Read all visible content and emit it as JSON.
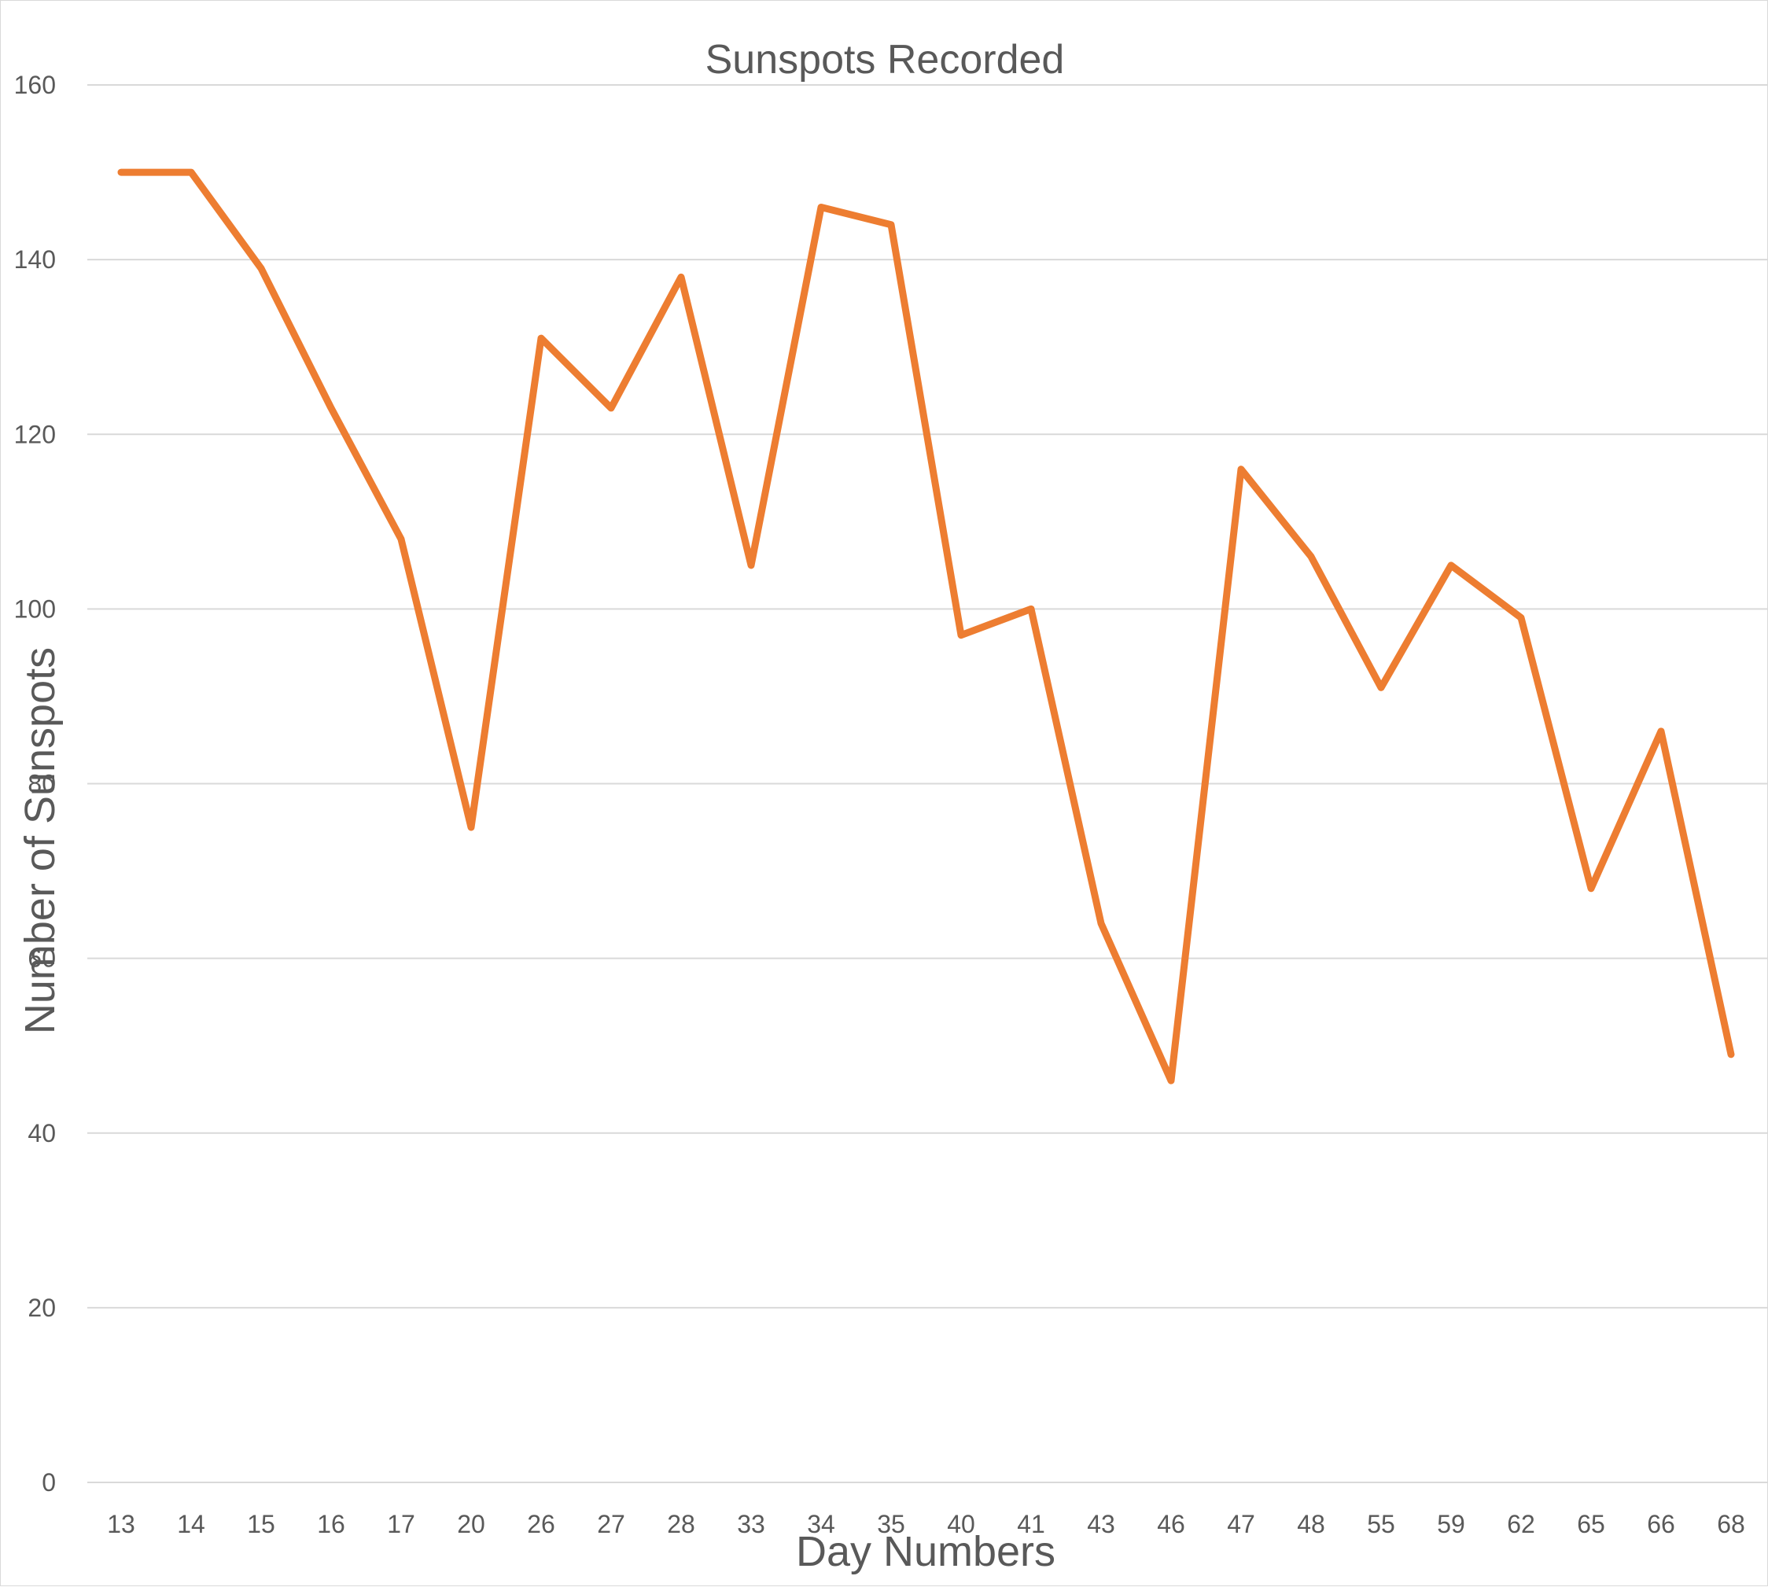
{
  "chart_data": {
    "type": "line",
    "title": "Sunspots Recorded",
    "xlabel": "Day Numbers",
    "ylabel": "Number of Sunspots",
    "categories": [
      "13",
      "14",
      "15",
      "16",
      "17",
      "20",
      "26",
      "27",
      "28",
      "33",
      "34",
      "35",
      "40",
      "41",
      "43",
      "46",
      "47",
      "48",
      "55",
      "59",
      "62",
      "65",
      "66",
      "68"
    ],
    "series": [
      {
        "values": [
          150,
          150,
          139,
          123,
          108,
          75,
          131,
          123,
          138,
          105,
          146,
          144,
          97,
          100,
          64,
          46,
          116,
          106,
          91,
          105,
          99,
          68,
          86,
          49
        ],
        "color": "#ED7D31"
      }
    ],
    "ylim": [
      0,
      160
    ],
    "yticks": [
      0,
      20,
      40,
      60,
      80,
      100,
      120,
      140,
      160
    ],
    "grid": "horizontal",
    "legend": "none"
  }
}
